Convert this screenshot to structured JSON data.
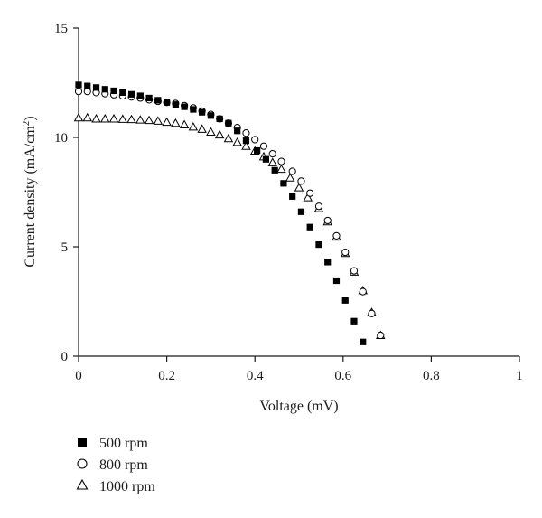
{
  "chart_data": {
    "type": "scatter",
    "xlabel": "Voltage (mV)",
    "ylabel": "Current density (mA/cm",
    "ylabel_sup": "2",
    "ylabel_end": ")",
    "xlim": [
      0,
      1
    ],
    "ylim": [
      0,
      15
    ],
    "xticks": [
      0,
      0.2,
      0.4,
      0.6,
      0.8,
      1
    ],
    "xtick_labels": [
      "0",
      "0.2",
      "0.4",
      "0.6",
      "0.8",
      "1"
    ],
    "yticks": [
      0,
      5,
      10,
      15
    ],
    "ytick_labels": [
      "0",
      "5",
      "10",
      "15"
    ],
    "grid": false,
    "legend_position": "below plot, left",
    "series": [
      {
        "name": "500 rpm",
        "marker": "filled-square",
        "x": [
          0.0,
          0.02,
          0.04,
          0.06,
          0.08,
          0.1,
          0.12,
          0.14,
          0.16,
          0.18,
          0.2,
          0.22,
          0.24,
          0.26,
          0.28,
          0.3,
          0.32,
          0.34,
          0.36,
          0.38,
          0.405,
          0.425,
          0.445,
          0.465,
          0.485,
          0.505,
          0.525,
          0.545,
          0.565,
          0.585,
          0.605,
          0.625,
          0.645
        ],
        "y": [
          12.4,
          12.35,
          12.28,
          12.2,
          12.13,
          12.05,
          11.97,
          11.9,
          11.8,
          11.7,
          11.6,
          11.5,
          11.4,
          11.28,
          11.15,
          11.0,
          10.85,
          10.65,
          10.3,
          9.85,
          9.4,
          9.0,
          8.5,
          7.9,
          7.3,
          6.6,
          5.9,
          5.1,
          4.3,
          3.45,
          2.55,
          1.6,
          0.65
        ]
      },
      {
        "name": "800 rpm",
        "marker": "open-circle",
        "x": [
          0.0,
          0.02,
          0.04,
          0.06,
          0.08,
          0.1,
          0.12,
          0.14,
          0.16,
          0.18,
          0.2,
          0.22,
          0.24,
          0.26,
          0.28,
          0.3,
          0.32,
          0.34,
          0.36,
          0.38,
          0.4,
          0.42,
          0.44,
          0.46,
          0.485,
          0.505,
          0.525,
          0.545,
          0.565,
          0.585,
          0.605,
          0.625,
          0.645,
          0.665,
          0.685
        ],
        "y": [
          12.1,
          12.1,
          12.05,
          12.0,
          11.95,
          11.9,
          11.85,
          11.8,
          11.72,
          11.65,
          11.6,
          11.55,
          11.45,
          11.35,
          11.2,
          11.05,
          10.85,
          10.65,
          10.45,
          10.2,
          9.9,
          9.6,
          9.25,
          8.9,
          8.45,
          8.0,
          7.45,
          6.85,
          6.2,
          5.5,
          4.75,
          3.9,
          2.95,
          1.95,
          0.95
        ]
      },
      {
        "name": "1000 rpm",
        "marker": "open-triangle",
        "x": [
          0.0,
          0.02,
          0.04,
          0.06,
          0.08,
          0.1,
          0.12,
          0.14,
          0.16,
          0.18,
          0.2,
          0.22,
          0.24,
          0.26,
          0.28,
          0.3,
          0.32,
          0.34,
          0.36,
          0.38,
          0.4,
          0.42,
          0.44,
          0.46,
          0.48,
          0.5,
          0.52,
          0.545,
          0.565,
          0.585,
          0.605,
          0.625,
          0.645,
          0.665,
          0.685
        ],
        "y": [
          10.9,
          10.9,
          10.85,
          10.85,
          10.85,
          10.83,
          10.82,
          10.8,
          10.78,
          10.75,
          10.7,
          10.65,
          10.58,
          10.48,
          10.38,
          10.25,
          10.12,
          9.95,
          9.78,
          9.6,
          9.38,
          9.12,
          8.85,
          8.55,
          8.15,
          7.7,
          7.25,
          6.75,
          6.15,
          5.45,
          4.7,
          3.85,
          3.0,
          2.0,
          0.95
        ]
      }
    ]
  }
}
